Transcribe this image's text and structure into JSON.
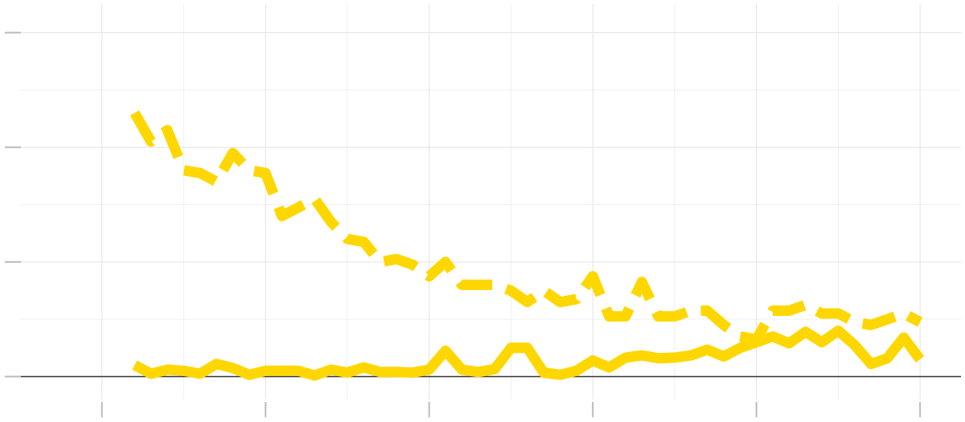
{
  "chart_data": {
    "type": "line",
    "title": "",
    "xlabel": "",
    "ylabel": "",
    "xlim": [
      -0.1,
      1.05
    ],
    "ylim": [
      -0.04,
      0.65
    ],
    "x_ticks_major": [
      0,
      0.2,
      0.4,
      0.6,
      0.8,
      1.0
    ],
    "x_ticks_minor": [
      0.1,
      0.3,
      0.5,
      0.7,
      0.9
    ],
    "y_ticks_major": [
      0,
      0.2,
      0.4,
      0.6
    ],
    "y_ticks_minor": [
      0.1,
      0.3,
      0.5
    ],
    "tick_labels_visible": false,
    "grid": true,
    "zero_line": true,
    "color": "#ffd700",
    "series": [
      {
        "style": "dashed",
        "x": [
          0.04,
          0.06,
          0.08,
          0.1,
          0.12,
          0.14,
          0.16,
          0.18,
          0.2,
          0.22,
          0.24,
          0.26,
          0.28,
          0.3,
          0.32,
          0.34,
          0.36,
          0.38,
          0.4,
          0.42,
          0.44,
          0.46,
          0.48,
          0.5,
          0.52,
          0.54,
          0.56,
          0.58,
          0.6,
          0.62,
          0.64,
          0.66,
          0.68,
          0.7,
          0.72,
          0.74,
          0.76,
          0.78,
          0.8,
          0.82,
          0.84,
          0.86,
          0.88,
          0.9,
          0.92,
          0.94,
          0.96,
          0.98,
          1.0
        ],
        "values": [
          0.46,
          0.41,
          0.43,
          0.36,
          0.355,
          0.34,
          0.39,
          0.36,
          0.355,
          0.28,
          0.295,
          0.31,
          0.27,
          0.24,
          0.235,
          0.2,
          0.205,
          0.195,
          0.175,
          0.2,
          0.16,
          0.16,
          0.16,
          0.15,
          0.13,
          0.15,
          0.13,
          0.135,
          0.175,
          0.105,
          0.105,
          0.165,
          0.105,
          0.105,
          0.115,
          0.115,
          0.09,
          0.07,
          0.065,
          0.115,
          0.115,
          0.125,
          0.11,
          0.11,
          0.095,
          0.09,
          0.1,
          0.11,
          0.095
        ]
      },
      {
        "style": "solid",
        "x": [
          0.04,
          0.06,
          0.08,
          0.1,
          0.12,
          0.14,
          0.16,
          0.18,
          0.2,
          0.22,
          0.24,
          0.26,
          0.28,
          0.3,
          0.32,
          0.34,
          0.36,
          0.38,
          0.4,
          0.42,
          0.44,
          0.46,
          0.48,
          0.5,
          0.52,
          0.54,
          0.56,
          0.58,
          0.6,
          0.62,
          0.64,
          0.66,
          0.68,
          0.7,
          0.72,
          0.74,
          0.76,
          0.78,
          0.8,
          0.82,
          0.84,
          0.86,
          0.88,
          0.9,
          0.92,
          0.94,
          0.96,
          0.98,
          1.0
        ],
        "values": [
          0.02,
          0.005,
          0.012,
          0.01,
          0.005,
          0.022,
          0.015,
          0.003,
          0.01,
          0.01,
          0.01,
          0.002,
          0.012,
          0.007,
          0.016,
          0.008,
          0.008,
          0.007,
          0.012,
          0.045,
          0.012,
          0.008,
          0.013,
          0.05,
          0.05,
          0.007,
          0.003,
          0.01,
          0.028,
          0.016,
          0.033,
          0.037,
          0.032,
          0.033,
          0.037,
          0.047,
          0.035,
          0.05,
          0.06,
          0.07,
          0.058,
          0.078,
          0.06,
          0.08,
          0.055,
          0.022,
          0.032,
          0.068,
          0.03
        ]
      }
    ]
  }
}
